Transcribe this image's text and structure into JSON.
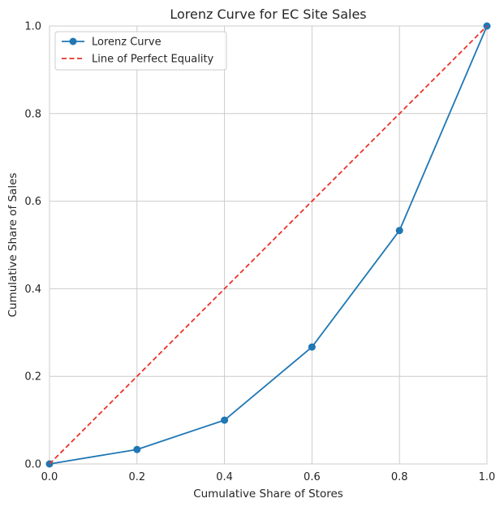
{
  "chart_data": {
    "type": "line",
    "title": "Lorenz Curve for EC Site Sales",
    "xlabel": "Cumulative Share of Stores",
    "ylabel": "Cumulative Share of Sales",
    "xlim": [
      0.0,
      1.0
    ],
    "ylim": [
      0.0,
      1.0
    ],
    "xticks": [
      0.0,
      0.2,
      0.4,
      0.6,
      0.8,
      1.0
    ],
    "yticks": [
      0.0,
      0.2,
      0.4,
      0.6,
      0.8,
      1.0
    ],
    "xtick_labels": [
      "0.0",
      "0.2",
      "0.4",
      "0.6",
      "0.8",
      "1.0"
    ],
    "ytick_labels": [
      "0.0",
      "0.2",
      "0.4",
      "0.6",
      "0.8",
      "1.0"
    ],
    "grid": true,
    "legend_position": "top-left",
    "series": [
      {
        "name": "Lorenz Curve",
        "style": "solid-with-markers",
        "color": "#1f77b4",
        "x": [
          0.0,
          0.2,
          0.4,
          0.6,
          0.8,
          1.0
        ],
        "y": [
          0.0,
          0.033,
          0.1,
          0.267,
          0.533,
          1.0
        ]
      },
      {
        "name": "Line of Perfect Equality",
        "style": "dashed",
        "color": "#e8332a",
        "x": [
          0.0,
          1.0
        ],
        "y": [
          0.0,
          1.0
        ]
      }
    ]
  }
}
